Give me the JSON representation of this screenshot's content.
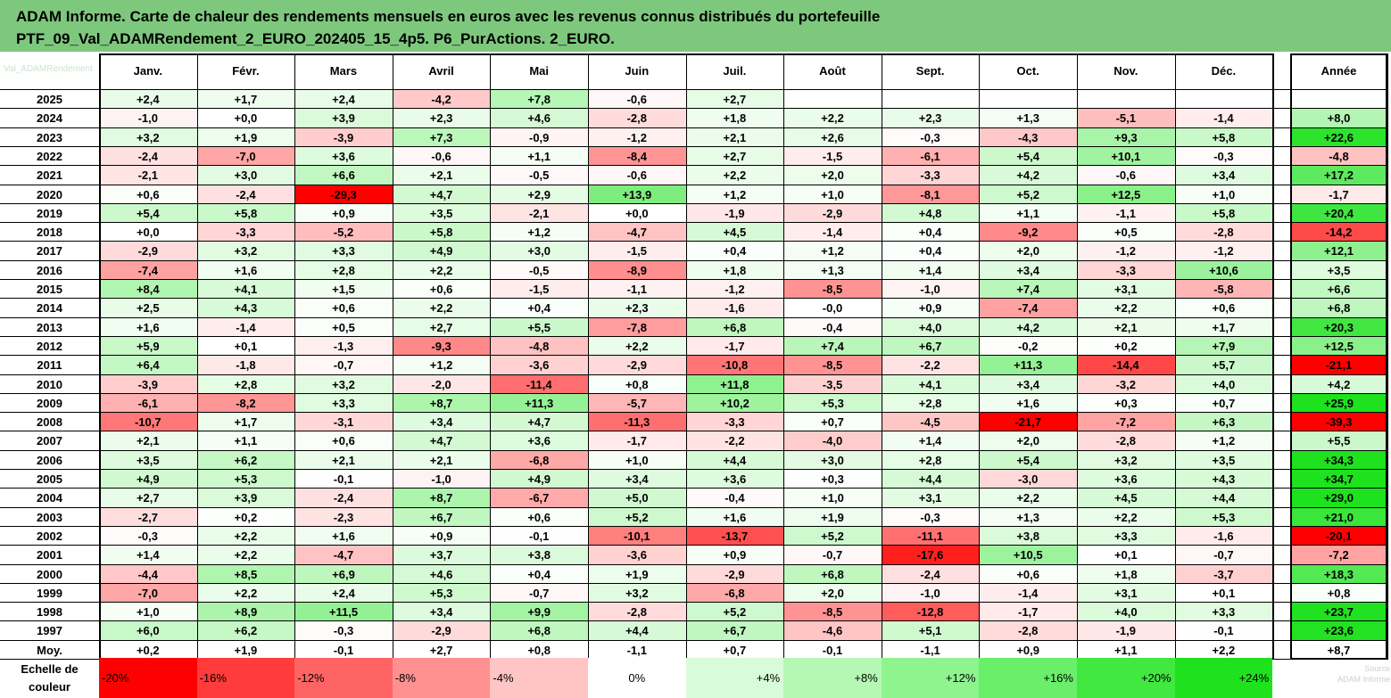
{
  "title": {
    "line1": "ADAM Informe. Carte de chaleur des rendements mensuels en euros avec les revenus connus distribués du portefeuille",
    "line2": "PTF_09_Val_ADAMRendement_2_EURO_202405_15_4p5. P6_PurActions. 2_EURO."
  },
  "corner_label": "Val_ADAMRendement",
  "scale_label_line1": "Echelle de",
  "scale_label_line2": "couleur",
  "faint_text_line1": "Source",
  "faint_text_line2": "ADAM Informe",
  "chart_data": {
    "type": "heatmap",
    "title": "ADAM Informe. Carte de chaleur des rendements mensuels en euros avec les revenus connus distribués du portefeuille",
    "columns": [
      "Janv.",
      "Févr.",
      "Mars",
      "Avril",
      "Mai",
      "Juin",
      "Juil.",
      "Août",
      "Sept.",
      "Oct.",
      "Nov.",
      "Déc."
    ],
    "year_header": "Année",
    "rows": [
      {
        "label": "2025",
        "values": [
          "+2,4",
          "+1,7",
          "+2,4",
          "-4,2",
          "+7,8",
          "-0,6",
          "+2,7",
          "",
          "",
          "",
          "",
          ""
        ],
        "year": ""
      },
      {
        "label": "2024",
        "values": [
          "-1,0",
          "+0,0",
          "+3,9",
          "+2,3",
          "+4,6",
          "-2,8",
          "+1,8",
          "+2,2",
          "+2,3",
          "+1,3",
          "-5,1",
          "-1,4"
        ],
        "year": "+8,0"
      },
      {
        "label": "2023",
        "values": [
          "+3,2",
          "+1,9",
          "-3,9",
          "+7,3",
          "-0,9",
          "-1,2",
          "+2,1",
          "+2,6",
          "-0,3",
          "-4,3",
          "+9,3",
          "+5,8"
        ],
        "year": "+22,6"
      },
      {
        "label": "2022",
        "values": [
          "-2,4",
          "-7,0",
          "+3,6",
          "-0,6",
          "+1,1",
          "-8,4",
          "+2,7",
          "-1,5",
          "-6,1",
          "+5,4",
          "+10,1",
          "-0,3"
        ],
        "year": "-4,8"
      },
      {
        "label": "2021",
        "values": [
          "-2,1",
          "+3,0",
          "+6,6",
          "+2,1",
          "-0,5",
          "-0,6",
          "+2,2",
          "+2,0",
          "-3,3",
          "+4,2",
          "-0,6",
          "+3,4"
        ],
        "year": "+17,2"
      },
      {
        "label": "2020",
        "values": [
          "+0,6",
          "-2,4",
          "-29,3",
          "+4,7",
          "+2,9",
          "+13,9",
          "+1,2",
          "+1,0",
          "-8,1",
          "+5,2",
          "+12,5",
          "+1,0"
        ],
        "year": "-1,7"
      },
      {
        "label": "2019",
        "values": [
          "+5,4",
          "+5,8",
          "+0,9",
          "+3,5",
          "-2,1",
          "+0,0",
          "-1,9",
          "-2,9",
          "+4,8",
          "+1,1",
          "-1,1",
          "+5,8"
        ],
        "year": "+20,4"
      },
      {
        "label": "2018",
        "values": [
          "+0,0",
          "-3,3",
          "-5,2",
          "+5,8",
          "+1,2",
          "-4,7",
          "+4,5",
          "-1,4",
          "+0,4",
          "-9,2",
          "+0,5",
          "-2,8"
        ],
        "year": "-14,2"
      },
      {
        "label": "2017",
        "values": [
          "-2,9",
          "+3,2",
          "+3,3",
          "+4,9",
          "+3,0",
          "-1,5",
          "+0,4",
          "+1,2",
          "+0,4",
          "+2,0",
          "-1,2",
          "-1,2"
        ],
        "year": "+12,1"
      },
      {
        "label": "2016",
        "values": [
          "-7,4",
          "+1,6",
          "+2,8",
          "+2,2",
          "-0,5",
          "-8,9",
          "+1,8",
          "+1,3",
          "+1,4",
          "+3,4",
          "-3,3",
          "+10,6"
        ],
        "year": "+3,5"
      },
      {
        "label": "2015",
        "values": [
          "+8,4",
          "+4,1",
          "+1,5",
          "+0,6",
          "-1,5",
          "-1,1",
          "-1,2",
          "-8,5",
          "-1,0",
          "+7,4",
          "+3,1",
          "-5,8"
        ],
        "year": "+6,6"
      },
      {
        "label": "2014",
        "values": [
          "+2,5",
          "+4,3",
          "+0,6",
          "+2,2",
          "+0,4",
          "+2,3",
          "-1,6",
          "-0,0",
          "+0,9",
          "-7,4",
          "+2,2",
          "+0,6"
        ],
        "year": "+6,8"
      },
      {
        "label": "2013",
        "values": [
          "+1,6",
          "-1,4",
          "+0,5",
          "+2,7",
          "+5,5",
          "-7,8",
          "+6,8",
          "-0,4",
          "+4,0",
          "+4,2",
          "+2,1",
          "+1,7"
        ],
        "year": "+20,3"
      },
      {
        "label": "2012",
        "values": [
          "+5,9",
          "+0,1",
          "-1,3",
          "-9,3",
          "-4,8",
          "+2,2",
          "-1,7",
          "+7,4",
          "+6,7",
          "-0,2",
          "+0,2",
          "+7,9"
        ],
        "year": "+12,5"
      },
      {
        "label": "2011",
        "values": [
          "+6,4",
          "-1,8",
          "-0,7",
          "+1,2",
          "-3,6",
          "-2,9",
          "-10,8",
          "-8,5",
          "-2,2",
          "+11,3",
          "-14,4",
          "+5,7"
        ],
        "year": "-21,1"
      },
      {
        "label": "2010",
        "values": [
          "-3,9",
          "+2,8",
          "+3,2",
          "-2,0",
          "-11,4",
          "+0,8",
          "+11,8",
          "-3,5",
          "+4,1",
          "+3,4",
          "-3,2",
          "+4,0"
        ],
        "year": "+4,2"
      },
      {
        "label": "2009",
        "values": [
          "-6,1",
          "-8,2",
          "+3,3",
          "+8,7",
          "+11,3",
          "-5,7",
          "+10,2",
          "+5,3",
          "+2,8",
          "+1,6",
          "+0,3",
          "+0,7"
        ],
        "year": "+25,9"
      },
      {
        "label": "2008",
        "values": [
          "-10,7",
          "+1,7",
          "-3,1",
          "+3,4",
          "+4,7",
          "-11,3",
          "-3,3",
          "+0,7",
          "-4,5",
          "-21,7",
          "-7,2",
          "+6,3"
        ],
        "year": "-39,3"
      },
      {
        "label": "2007",
        "values": [
          "+2,1",
          "+1,1",
          "+0,6",
          "+4,7",
          "+3,6",
          "-1,7",
          "-2,2",
          "-4,0",
          "+1,4",
          "+2,0",
          "-2,8",
          "+1,2"
        ],
        "year": "+5,5"
      },
      {
        "label": "2006",
        "values": [
          "+3,5",
          "+6,2",
          "+2,1",
          "+2,1",
          "-6,8",
          "+1,0",
          "+4,4",
          "+3,0",
          "+2,8",
          "+5,4",
          "+3,2",
          "+3,5"
        ],
        "year": "+34,3"
      },
      {
        "label": "2005",
        "values": [
          "+4,9",
          "+5,3",
          "-0,1",
          "-1,0",
          "+4,9",
          "+3,4",
          "+3,6",
          "+0,3",
          "+4,4",
          "-3,0",
          "+3,6",
          "+4,3"
        ],
        "year": "+34,7"
      },
      {
        "label": "2004",
        "values": [
          "+2,7",
          "+3,9",
          "-2,4",
          "+8,7",
          "-6,7",
          "+5,0",
          "-0,4",
          "+1,0",
          "+3,1",
          "+2,2",
          "+4,5",
          "+4,4"
        ],
        "year": "+29,0"
      },
      {
        "label": "2003",
        "values": [
          "-2,7",
          "+0,2",
          "-2,3",
          "+6,7",
          "+0,6",
          "+5,2",
          "+1,6",
          "+1,9",
          "-0,3",
          "+1,3",
          "+2,2",
          "+5,3"
        ],
        "year": "+21,0"
      },
      {
        "label": "2002",
        "values": [
          "-0,3",
          "+2,2",
          "+1,6",
          "+0,9",
          "-0,1",
          "-10,1",
          "-13,7",
          "+5,2",
          "-11,1",
          "+3,8",
          "+3,3",
          "-1,6"
        ],
        "year": "-20,1"
      },
      {
        "label": "2001",
        "values": [
          "+1,4",
          "+2,2",
          "-4,7",
          "+3,7",
          "+3,8",
          "-3,6",
          "+0,9",
          "-0,7",
          "-17,6",
          "+10,5",
          "+0,1",
          "-0,7"
        ],
        "year": "-7,2"
      },
      {
        "label": "2000",
        "values": [
          "-4,4",
          "+8,5",
          "+6,9",
          "+4,6",
          "+0,4",
          "+1,9",
          "-2,9",
          "+6,8",
          "-2,4",
          "+0,6",
          "+1,8",
          "-3,7"
        ],
        "year": "+18,3"
      },
      {
        "label": "1999",
        "values": [
          "-7,0",
          "+2,2",
          "+2,4",
          "+5,3",
          "-0,7",
          "+3,2",
          "-6,8",
          "+2,0",
          "-1,0",
          "-1,4",
          "+3,1",
          "+0,1"
        ],
        "year": "+0,8"
      },
      {
        "label": "1998",
        "values": [
          "+1,0",
          "+8,9",
          "+11,5",
          "+3,4",
          "+9,9",
          "-2,8",
          "+5,2",
          "-8,5",
          "-12,8",
          "-1,7",
          "+4,0",
          "+3,3"
        ],
        "year": "+23,7"
      },
      {
        "label": "1997",
        "values": [
          "+6,0",
          "+6,2",
          "-0,3",
          "-2,9",
          "+6,8",
          "+4,4",
          "+6,7",
          "-4,6",
          "+5,1",
          "-2,8",
          "-1,9",
          "-0,1"
        ],
        "year": "+23,6"
      }
    ],
    "average": {
      "label": "Moy.",
      "values": [
        "+0,2",
        "+1,9",
        "-0,1",
        "+2,7",
        "+0,8",
        "-1,1",
        "+0,7",
        "-0,1",
        "-1,1",
        "+0,9",
        "+1,1",
        "+2,2"
      ],
      "year": "+8,7"
    },
    "color_scale": [
      {
        "label": "-20%",
        "value": -20,
        "color": "#ff0000"
      },
      {
        "label": "-16%",
        "value": -16,
        "color": "#ff3b3b"
      },
      {
        "label": "-12%",
        "value": -12,
        "color": "#ff6464"
      },
      {
        "label": "-8%",
        "value": -8,
        "color": "#ff9090"
      },
      {
        "label": "-4%",
        "value": -4,
        "color": "#ffc4c4"
      },
      {
        "label": "0%",
        "value": 0,
        "color": "#ffffff"
      },
      {
        "label": "+4%",
        "value": 4,
        "color": "#d8fcd8"
      },
      {
        "label": "+8%",
        "value": 8,
        "color": "#b4f8b4"
      },
      {
        "label": "+12%",
        "value": 12,
        "color": "#8ef48e"
      },
      {
        "label": "+16%",
        "value": 16,
        "color": "#6aef6a"
      },
      {
        "label": "+20%",
        "value": 20,
        "color": "#40e840"
      },
      {
        "label": "+24%",
        "value": 24,
        "color": "#1ee21e"
      }
    ]
  }
}
